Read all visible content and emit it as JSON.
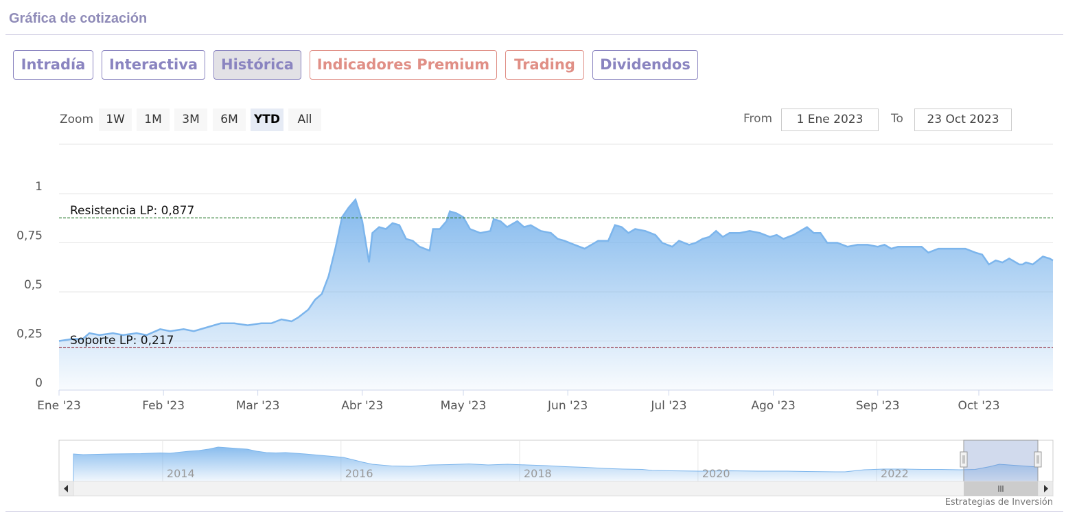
{
  "page": {
    "section_title": "Gráfica de cotización"
  },
  "tabs": [
    {
      "label": "Intradía",
      "style": "purple"
    },
    {
      "label": "Interactiva",
      "style": "purple"
    },
    {
      "label": "Histórica",
      "style": "purple",
      "active": true
    },
    {
      "label": "Indicadores Premium",
      "style": "red"
    },
    {
      "label": "Trading",
      "style": "red"
    },
    {
      "label": "Dividendos",
      "style": "purple"
    }
  ],
  "range_selector": {
    "zoom_label": "Zoom",
    "buttons": [
      "1W",
      "1M",
      "3M",
      "6M",
      "YTD",
      "All"
    ],
    "selected": "YTD",
    "from_label": "From",
    "from_value": "1 Ene 2023",
    "to_label": "To",
    "to_value": "23 Oct 2023"
  },
  "credits": "Estrategias de Inversión",
  "colors": {
    "series": "#7cb5ec",
    "resistance": "#2e7d32",
    "support": "#8b1a2b",
    "tab_purple": "#8a84c0",
    "tab_red": "#e08f86"
  },
  "chart_data": {
    "type": "area",
    "x_ticks": [
      "Ene '23",
      "Feb '23",
      "Mar '23",
      "Abr '23",
      "May '23",
      "Jun '23",
      "Jul '23",
      "Ago '23",
      "Sep '23",
      "Oct '23"
    ],
    "y_ticks": [
      "0",
      "0,25",
      "0,5",
      "0,75",
      "1"
    ],
    "ylim": [
      0,
      1
    ],
    "xlim": [
      "2023-01-01",
      "2023-10-23"
    ],
    "grid": true,
    "series": [
      {
        "values": [
          [
            "2023-01-01",
            0.25
          ],
          [
            "2023-01-05",
            0.26
          ],
          [
            "2023-01-08",
            0.26
          ],
          [
            "2023-01-10",
            0.29
          ],
          [
            "2023-01-13",
            0.28
          ],
          [
            "2023-01-17",
            0.29
          ],
          [
            "2023-01-20",
            0.28
          ],
          [
            "2023-01-24",
            0.29
          ],
          [
            "2023-01-27",
            0.28
          ],
          [
            "2023-01-31",
            0.31
          ],
          [
            "2023-02-03",
            0.3
          ],
          [
            "2023-02-07",
            0.31
          ],
          [
            "2023-02-10",
            0.3
          ],
          [
            "2023-02-14",
            0.32
          ],
          [
            "2023-02-18",
            0.34
          ],
          [
            "2023-02-22",
            0.34
          ],
          [
            "2023-02-26",
            0.33
          ],
          [
            "2023-03-02",
            0.34
          ],
          [
            "2023-03-05",
            0.34
          ],
          [
            "2023-03-08",
            0.36
          ],
          [
            "2023-03-11",
            0.35
          ],
          [
            "2023-03-13",
            0.37
          ],
          [
            "2023-03-16",
            0.41
          ],
          [
            "2023-03-18",
            0.46
          ],
          [
            "2023-03-20",
            0.49
          ],
          [
            "2023-03-22",
            0.58
          ],
          [
            "2023-03-24",
            0.72
          ],
          [
            "2023-03-26",
            0.88
          ],
          [
            "2023-03-28",
            0.93
          ],
          [
            "2023-03-30",
            0.97
          ],
          [
            "2023-04-01",
            0.86
          ],
          [
            "2023-04-03",
            0.65
          ],
          [
            "2023-04-04",
            0.8
          ],
          [
            "2023-04-06",
            0.83
          ],
          [
            "2023-04-08",
            0.82
          ],
          [
            "2023-04-10",
            0.85
          ],
          [
            "2023-04-12",
            0.84
          ],
          [
            "2023-04-14",
            0.77
          ],
          [
            "2023-04-16",
            0.76
          ],
          [
            "2023-04-18",
            0.73
          ],
          [
            "2023-04-21",
            0.71
          ],
          [
            "2023-04-22",
            0.82
          ],
          [
            "2023-04-24",
            0.82
          ],
          [
            "2023-04-26",
            0.86
          ],
          [
            "2023-04-27",
            0.91
          ],
          [
            "2023-04-29",
            0.9
          ],
          [
            "2023-05-01",
            0.88
          ],
          [
            "2023-05-03",
            0.82
          ],
          [
            "2023-05-06",
            0.8
          ],
          [
            "2023-05-09",
            0.81
          ],
          [
            "2023-05-10",
            0.87
          ],
          [
            "2023-05-12",
            0.86
          ],
          [
            "2023-05-14",
            0.83
          ],
          [
            "2023-05-17",
            0.86
          ],
          [
            "2023-05-19",
            0.83
          ],
          [
            "2023-05-21",
            0.84
          ],
          [
            "2023-05-24",
            0.81
          ],
          [
            "2023-05-27",
            0.8
          ],
          [
            "2023-05-29",
            0.77
          ],
          [
            "2023-05-31",
            0.76
          ],
          [
            "2023-06-03",
            0.74
          ],
          [
            "2023-06-06",
            0.72
          ],
          [
            "2023-06-08",
            0.74
          ],
          [
            "2023-06-10",
            0.76
          ],
          [
            "2023-06-13",
            0.76
          ],
          [
            "2023-06-15",
            0.84
          ],
          [
            "2023-06-17",
            0.83
          ],
          [
            "2023-06-19",
            0.8
          ],
          [
            "2023-06-21",
            0.82
          ],
          [
            "2023-06-24",
            0.81
          ],
          [
            "2023-06-27",
            0.79
          ],
          [
            "2023-06-29",
            0.75
          ],
          [
            "2023-07-02",
            0.73
          ],
          [
            "2023-07-04",
            0.76
          ],
          [
            "2023-07-07",
            0.74
          ],
          [
            "2023-07-09",
            0.75
          ],
          [
            "2023-07-11",
            0.77
          ],
          [
            "2023-07-13",
            0.78
          ],
          [
            "2023-07-15",
            0.81
          ],
          [
            "2023-07-17",
            0.78
          ],
          [
            "2023-07-19",
            0.8
          ],
          [
            "2023-07-22",
            0.8
          ],
          [
            "2023-07-25",
            0.81
          ],
          [
            "2023-07-28",
            0.8
          ],
          [
            "2023-07-31",
            0.78
          ],
          [
            "2023-08-02",
            0.79
          ],
          [
            "2023-08-04",
            0.77
          ],
          [
            "2023-08-07",
            0.79
          ],
          [
            "2023-08-09",
            0.81
          ],
          [
            "2023-08-11",
            0.83
          ],
          [
            "2023-08-13",
            0.8
          ],
          [
            "2023-08-15",
            0.8
          ],
          [
            "2023-08-17",
            0.75
          ],
          [
            "2023-08-20",
            0.75
          ],
          [
            "2023-08-23",
            0.73
          ],
          [
            "2023-08-26",
            0.74
          ],
          [
            "2023-08-29",
            0.74
          ],
          [
            "2023-09-01",
            0.73
          ],
          [
            "2023-09-03",
            0.74
          ],
          [
            "2023-09-05",
            0.72
          ],
          [
            "2023-09-07",
            0.73
          ],
          [
            "2023-09-10",
            0.73
          ],
          [
            "2023-09-14",
            0.73
          ],
          [
            "2023-09-16",
            0.7
          ],
          [
            "2023-09-19",
            0.72
          ],
          [
            "2023-09-23",
            0.72
          ],
          [
            "2023-09-27",
            0.72
          ],
          [
            "2023-09-30",
            0.7
          ],
          [
            "2023-10-02",
            0.69
          ],
          [
            "2023-10-04",
            0.64
          ],
          [
            "2023-10-06",
            0.66
          ],
          [
            "2023-10-08",
            0.65
          ],
          [
            "2023-10-10",
            0.67
          ],
          [
            "2023-10-11",
            0.66
          ],
          [
            "2023-10-13",
            0.64
          ],
          [
            "2023-10-14",
            0.64
          ],
          [
            "2023-10-15",
            0.65
          ],
          [
            "2023-10-17",
            0.64
          ],
          [
            "2023-10-20",
            0.68
          ],
          [
            "2023-10-22",
            0.67
          ],
          [
            "2023-10-23",
            0.66
          ]
        ]
      }
    ],
    "plot_lines": [
      {
        "label": "Resistencia LP: 0,877",
        "value": 0.877,
        "color": "#2e7d32"
      },
      {
        "label": "Soporte LP: 0,217",
        "value": 0.217,
        "color": "#8b1a2b"
      }
    ],
    "navigator": {
      "x_ticks": [
        "2014",
        "2016",
        "2018",
        "2020",
        "2022"
      ]
    }
  }
}
